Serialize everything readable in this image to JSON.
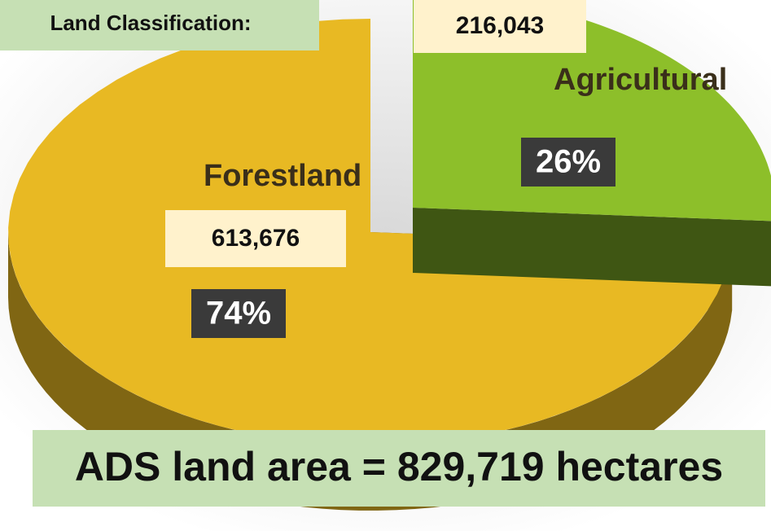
{
  "chart_data": {
    "type": "pie",
    "title": "Land Classification:",
    "categories": [
      "Forestland",
      "Agricultural"
    ],
    "values": [
      74,
      26
    ],
    "value_labels": [
      "74%",
      "26%"
    ],
    "colors": [
      "#e8b923",
      "#8dbf2a"
    ],
    "annotations": [
      "613,676",
      "216,043",
      "ADS land area = 829,719 hectares"
    ]
  }
}
